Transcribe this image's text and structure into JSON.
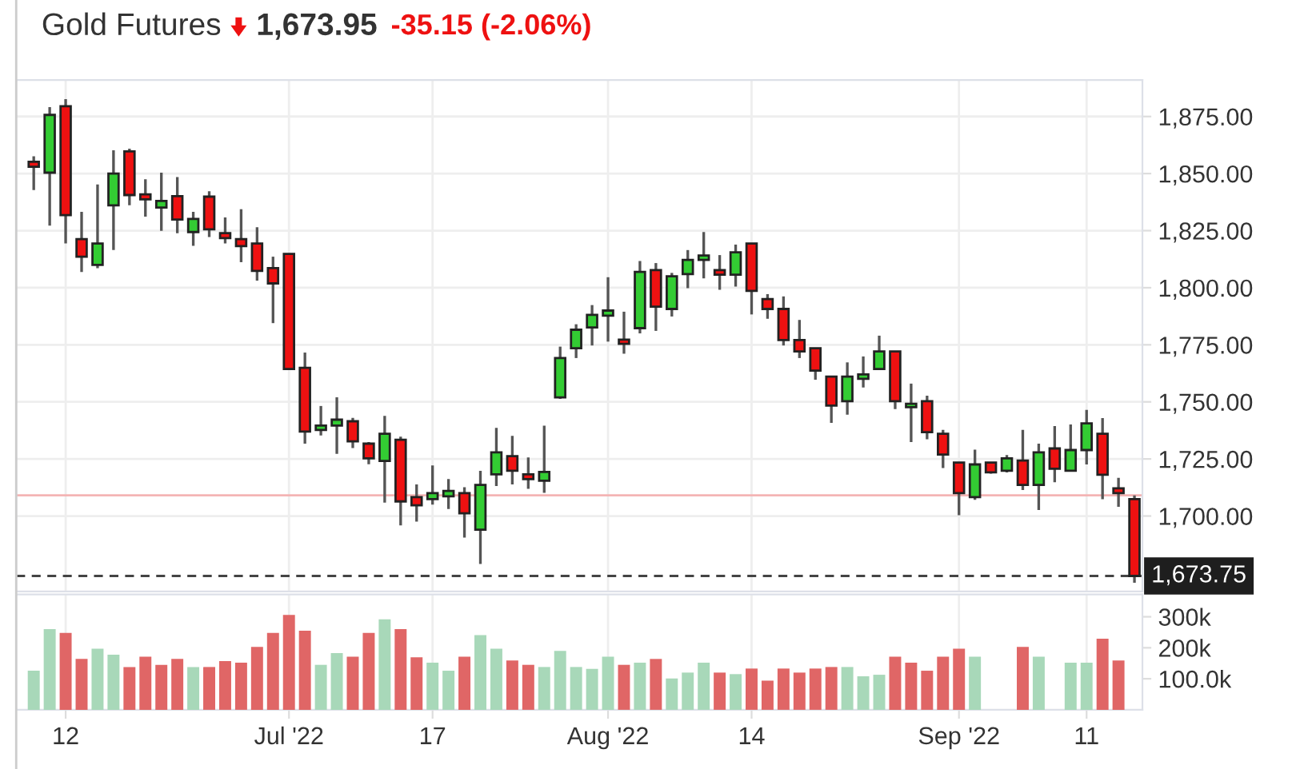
{
  "chart_data": [
    {
      "type": "candlestick",
      "title": "Gold Futures",
      "annotations": [
        "1,673.95",
        "-35.15 (-2.06%)"
      ],
      "categories": [
        null,
        null,
        null,
        null,
        null,
        null,
        null,
        null,
        null,
        null,
        null,
        null,
        null,
        null,
        null,
        null,
        null,
        null,
        null,
        null,
        null,
        null,
        null,
        null,
        null,
        null,
        null,
        null,
        null,
        null,
        null,
        null,
        null,
        null,
        null,
        null,
        null,
        null,
        null,
        null,
        null,
        null,
        null,
        null,
        null,
        null,
        null,
        null,
        null,
        null,
        null,
        null,
        null,
        null,
        null,
        null,
        null,
        null,
        null,
        null,
        null,
        null,
        null,
        null,
        null,
        null,
        null,
        null,
        null,
        null
      ],
      "ohlc": [
        [
          1855.2,
          1857.6,
          1842.8,
          1853.0
        ],
        [
          1850.4,
          1879.1,
          1827.2,
          1875.7
        ],
        [
          1879.5,
          1882.6,
          1819.4,
          1831.8
        ],
        [
          1821.3,
          1833.2,
          1806.9,
          1813.6
        ],
        [
          1810.0,
          1845.2,
          1808.6,
          1819.4
        ],
        [
          1836.1,
          1860.2,
          1816.5,
          1850.0
        ],
        [
          1859.7,
          1860.9,
          1836.1,
          1840.6
        ],
        [
          1840.9,
          1847.5,
          1831.1,
          1838.7
        ],
        [
          1835.1,
          1850.4,
          1824.9,
          1838.0
        ],
        [
          1840.1,
          1848.5,
          1823.9,
          1829.9
        ],
        [
          1824.4,
          1833.2,
          1818.4,
          1830.1
        ],
        [
          1839.9,
          1842.3,
          1822.2,
          1825.6
        ],
        [
          1823.9,
          1830.8,
          1819.4,
          1821.7
        ],
        [
          1821.3,
          1834.4,
          1811.2,
          1818.2
        ],
        [
          1819.4,
          1826.5,
          1803.1,
          1807.4
        ],
        [
          1808.6,
          1813.6,
          1784.5,
          1801.9
        ],
        [
          1814.8,
          1814.8,
          1764.0,
          1764.4
        ],
        [
          1764.9,
          1771.6,
          1731.7,
          1737.0
        ],
        [
          1737.7,
          1748.2,
          1735.3,
          1739.6
        ],
        [
          1739.6,
          1752.0,
          1727.2,
          1742.2
        ],
        [
          1741.5,
          1743.0,
          1729.8,
          1732.7
        ],
        [
          1731.7,
          1732.4,
          1722.7,
          1725.3
        ],
        [
          1724.1,
          1743.9,
          1705.9,
          1736.0
        ],
        [
          1733.4,
          1734.8,
          1695.9,
          1706.4
        ],
        [
          1708.3,
          1713.8,
          1697.6,
          1704.7
        ],
        [
          1707.4,
          1722.2,
          1705.0,
          1710.0
        ],
        [
          1708.6,
          1716.2,
          1703.1,
          1711.0
        ],
        [
          1710.0,
          1712.6,
          1690.6,
          1701.2
        ],
        [
          1694.0,
          1719.8,
          1679.0,
          1713.6
        ],
        [
          1718.3,
          1738.6,
          1713.1,
          1727.9
        ],
        [
          1726.2,
          1735.1,
          1713.8,
          1719.8
        ],
        [
          1718.3,
          1725.7,
          1711.9,
          1716.2
        ],
        [
          1715.5,
          1739.6,
          1710.2,
          1719.3
        ],
        [
          1752.0,
          1774.2,
          1751.3,
          1769.2
        ],
        [
          1773.5,
          1784.0,
          1769.2,
          1781.6
        ],
        [
          1782.6,
          1792.4,
          1774.7,
          1788.1
        ],
        [
          1787.8,
          1804.6,
          1776.4,
          1790.0
        ],
        [
          1777.3,
          1789.5,
          1771.1,
          1775.4
        ],
        [
          1782.3,
          1811.7,
          1780.0,
          1806.9
        ],
        [
          1807.7,
          1810.8,
          1781.1,
          1791.7
        ],
        [
          1790.7,
          1806.5,
          1787.4,
          1805.0
        ],
        [
          1806.0,
          1816.5,
          1799.8,
          1812.2
        ],
        [
          1812.2,
          1824.4,
          1804.1,
          1814.1
        ],
        [
          1807.7,
          1814.3,
          1799.1,
          1805.7
        ],
        [
          1805.7,
          1818.9,
          1800.5,
          1815.5
        ],
        [
          1819.4,
          1819.4,
          1788.3,
          1798.6
        ],
        [
          1795.0,
          1797.2,
          1786.4,
          1790.7
        ],
        [
          1790.7,
          1796.2,
          1774.7,
          1777.1
        ],
        [
          1777.1,
          1785.9,
          1769.2,
          1772.1
        ],
        [
          1773.5,
          1773.5,
          1759.7,
          1763.7
        ],
        [
          1761.1,
          1761.1,
          1740.8,
          1748.4
        ],
        [
          1750.3,
          1767.3,
          1744.4,
          1761.1
        ],
        [
          1760.1,
          1769.9,
          1756.3,
          1762.0
        ],
        [
          1764.4,
          1779.0,
          1764.0,
          1772.1
        ],
        [
          1772.1,
          1772.1,
          1746.8,
          1750.3
        ],
        [
          1747.7,
          1758.0,
          1732.4,
          1749.2
        ],
        [
          1750.3,
          1752.7,
          1733.6,
          1736.7
        ],
        [
          1736.0,
          1737.7,
          1721.0,
          1726.9
        ],
        [
          1723.4,
          1723.4,
          1700.4,
          1710.0
        ],
        [
          1708.3,
          1729.1,
          1707.1,
          1722.6
        ],
        [
          1723.4,
          1723.4,
          1718.6,
          1719.1
        ],
        [
          1719.8,
          1726.7,
          1719.1,
          1725.3
        ],
        [
          1724.3,
          1737.7,
          1711.4,
          1713.6
        ],
        [
          1713.6,
          1731.7,
          1702.6,
          1727.9
        ],
        [
          1729.6,
          1739.4,
          1714.8,
          1720.7
        ],
        [
          1719.8,
          1740.1,
          1719.8,
          1728.9
        ],
        [
          1728.9,
          1746.5,
          1722.6,
          1740.6
        ],
        [
          1736.0,
          1742.9,
          1707.4,
          1718.1
        ],
        [
          1712.1,
          1716.7,
          1704.0,
          1710.0
        ],
        [
          1707.4,
          1709.0,
          1670.8,
          1673.75
        ]
      ],
      "colors": [
        "#ee1111",
        "#33cc33",
        "#ee1111",
        "#ee1111",
        "#33cc33",
        "#33cc33",
        "#ee1111",
        "#ee1111",
        "#33cc33",
        "#ee1111",
        "#33cc33",
        "#ee1111",
        "#ee1111",
        "#ee1111",
        "#ee1111",
        "#ee1111",
        "#ee1111",
        "#ee1111",
        "#33cc33",
        "#33cc33",
        "#ee1111",
        "#ee1111",
        "#33cc33",
        "#ee1111",
        "#ee1111",
        "#33cc33",
        "#33cc33",
        "#ee1111",
        "#33cc33",
        "#33cc33",
        "#ee1111",
        "#ee1111",
        "#33cc33",
        "#33cc33",
        "#33cc33",
        "#33cc33",
        "#33cc33",
        "#ee1111",
        "#33cc33",
        "#ee1111",
        "#33cc33",
        "#33cc33",
        "#33cc33",
        "#ee1111",
        "#33cc33",
        "#ee1111",
        "#ee1111",
        "#ee1111",
        "#ee1111",
        "#ee1111",
        "#ee1111",
        "#33cc33",
        "#33cc33",
        "#33cc33",
        "#ee1111",
        "#33cc33",
        "#ee1111",
        "#ee1111",
        "#ee1111",
        "#33cc33",
        "#ee1111",
        "#33cc33",
        "#ee1111",
        "#33cc33",
        "#ee1111",
        "#33cc33",
        "#33cc33",
        "#ee1111",
        "#ee1111",
        "#ee1111"
      ],
      "ylim": [
        1667,
        1891
      ],
      "yticks": [
        {
          "value": 1700,
          "label": "1,700.00"
        },
        {
          "value": 1725,
          "label": "1,725.00"
        },
        {
          "value": 1750,
          "label": "1,750.00"
        },
        {
          "value": 1775,
          "label": "1,775.00"
        },
        {
          "value": 1800,
          "label": "1,800.00"
        },
        {
          "value": 1825,
          "label": "1,825.00"
        },
        {
          "value": 1850,
          "label": "1,850.00"
        },
        {
          "value": 1875,
          "label": "1,875.00"
        }
      ],
      "ref_lines": [
        {
          "axis": "y",
          "value": 1709.1,
          "color": "#f4b4b4",
          "line_style": "solid"
        },
        {
          "axis": "y",
          "value": 1673.75,
          "label": "1,673.75",
          "color": "#444444",
          "line_style": "dashed"
        }
      ],
      "grid": true,
      "tick_labels": "y"
    },
    {
      "type": "bar",
      "categories": [
        null,
        null,
        "12",
        null,
        null,
        null,
        null,
        null,
        null,
        null,
        null,
        null,
        null,
        null,
        null,
        null,
        "Jul '22",
        null,
        null,
        null,
        null,
        null,
        null,
        null,
        null,
        "17",
        null,
        null,
        null,
        null,
        null,
        null,
        null,
        null,
        null,
        null,
        "Aug '22",
        null,
        null,
        null,
        null,
        null,
        null,
        null,
        null,
        "14",
        null,
        null,
        null,
        null,
        null,
        null,
        null,
        null,
        null,
        null,
        null,
        null,
        "Sep '22",
        null,
        null,
        null,
        null,
        null,
        null,
        null,
        "11",
        null,
        null,
        null
      ],
      "values": [
        126000,
        260000,
        248000,
        164000,
        197000,
        178000,
        138000,
        171000,
        145000,
        164000,
        138000,
        138000,
        157000,
        152000,
        203000,
        248000,
        306000,
        255000,
        145000,
        183000,
        171000,
        248000,
        292000,
        260000,
        169000,
        152000,
        126000,
        171000,
        241000,
        197000,
        159000,
        145000,
        138000,
        190000,
        138000,
        132000,
        171000,
        145000,
        152000,
        164000,
        101000,
        120000,
        152000,
        120000,
        115000,
        133000,
        94000,
        133000,
        120000,
        133000,
        138000,
        138000,
        108000,
        113000,
        171000,
        152000,
        126000,
        171000,
        197000,
        171000,
        null,
        null,
        203000,
        171000,
        null,
        152000,
        152000,
        229000,
        159000,
        null
      ],
      "colors": [
        "#a8d8b9",
        "#a8d8b9",
        "#e06666",
        "#e06666",
        "#a8d8b9",
        "#a8d8b9",
        "#e06666",
        "#e06666",
        "#e06666",
        "#e06666",
        "#a8d8b9",
        "#e06666",
        "#e06666",
        "#e06666",
        "#e06666",
        "#e06666",
        "#e06666",
        "#e06666",
        "#a8d8b9",
        "#a8d8b9",
        "#e06666",
        "#e06666",
        "#a8d8b9",
        "#e06666",
        "#e06666",
        "#a8d8b9",
        "#a8d8b9",
        "#e06666",
        "#a8d8b9",
        "#a8d8b9",
        "#e06666",
        "#e06666",
        "#a8d8b9",
        "#a8d8b9",
        "#a8d8b9",
        "#a8d8b9",
        "#a8d8b9",
        "#e06666",
        "#a8d8b9",
        "#e06666",
        "#a8d8b9",
        "#a8d8b9",
        "#a8d8b9",
        "#e06666",
        "#a8d8b9",
        "#e06666",
        "#e06666",
        "#e06666",
        "#e06666",
        "#e06666",
        "#e06666",
        "#a8d8b9",
        "#a8d8b9",
        "#a8d8b9",
        "#e06666",
        "#e06666",
        "#e06666",
        "#e06666",
        "#e06666",
        "#a8d8b9",
        "#e06666",
        "#e06666",
        "#e06666",
        "#a8d8b9",
        "#e06666",
        "#a8d8b9",
        "#a8d8b9",
        "#e06666",
        "#e06666",
        "#e06666"
      ],
      "ylim": [
        0,
        372000
      ],
      "yticks": [
        {
          "value": 100000,
          "label": "100.0k"
        },
        {
          "value": 200000,
          "label": "200k"
        },
        {
          "value": 300000,
          "label": "300k"
        }
      ],
      "grid": "x"
    }
  ]
}
